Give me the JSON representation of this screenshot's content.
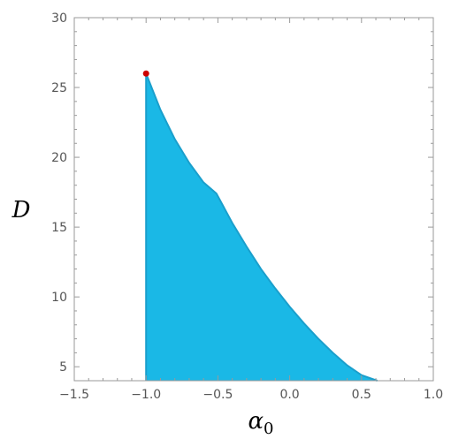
{
  "chart_data": {
    "type": "area",
    "title": "",
    "xlabel": "α",
    "xlabel_subscript": "0",
    "ylabel": "D",
    "xlim": [
      -1.5,
      1.0
    ],
    "ylim": [
      4,
      30
    ],
    "x_ticks": [
      -1.5,
      -1.0,
      -0.5,
      0.0,
      0.5,
      1.0
    ],
    "x_tick_labels": [
      "−1.5",
      "−1.0",
      "−0.5",
      "0.0",
      "0.5",
      "1.0"
    ],
    "y_ticks": [
      5,
      10,
      15,
      20,
      25,
      30
    ],
    "y_tick_labels": [
      "5",
      "10",
      "15",
      "20",
      "25",
      "30"
    ],
    "grid": false,
    "series": [
      {
        "values": [
          {
            "x": -1.0,
            "y": 4
          },
          {
            "x": -1.0,
            "y": 26
          },
          {
            "x": -0.9,
            "y": 23.4
          },
          {
            "x": -0.8,
            "y": 21.3
          },
          {
            "x": -0.7,
            "y": 19.6
          },
          {
            "x": -0.6,
            "y": 18.2
          },
          {
            "x": -0.51,
            "y": 17.4
          },
          {
            "x": -0.4,
            "y": 15.3
          },
          {
            "x": -0.3,
            "y": 13.6
          },
          {
            "x": -0.2,
            "y": 12.0
          },
          {
            "x": -0.1,
            "y": 10.6
          },
          {
            "x": 0.0,
            "y": 9.3
          },
          {
            "x": 0.1,
            "y": 8.1
          },
          {
            "x": 0.2,
            "y": 7.0
          },
          {
            "x": 0.3,
            "y": 6.0
          },
          {
            "x": 0.4,
            "y": 5.1
          },
          {
            "x": 0.5,
            "y": 4.4
          },
          {
            "x": 0.61,
            "y": 4
          }
        ]
      }
    ],
    "marked_point": {
      "x": -1.0,
      "y": 26
    },
    "colors": {
      "fill": "#1ab8e6",
      "stroke": "#1a9fcc",
      "point": "#cc0000",
      "frame": "#9a9a9a",
      "tick_text": "#555555"
    }
  }
}
